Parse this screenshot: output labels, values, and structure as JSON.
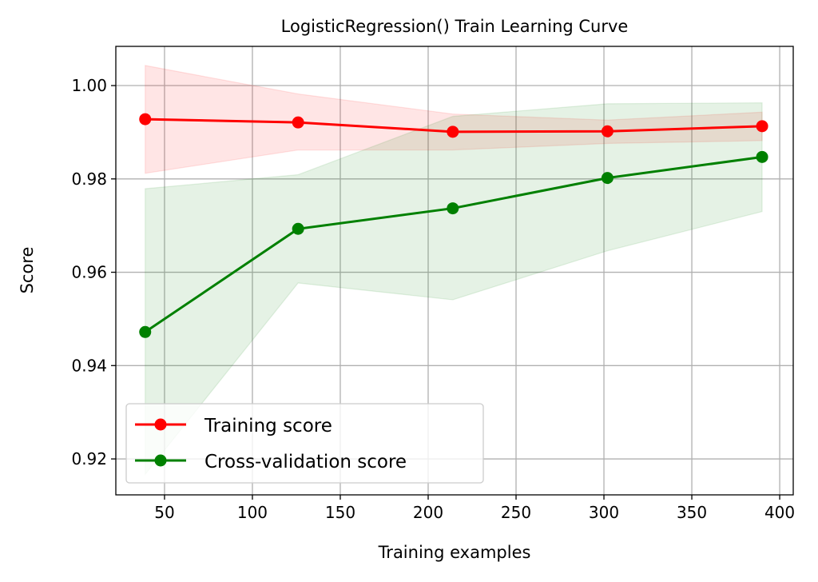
{
  "chart_data": {
    "type": "line",
    "title": "LogisticRegression() Train Learning Curve",
    "xlabel": "Training examples",
    "ylabel": "Score",
    "xlim": [
      22.3,
      407.7
    ],
    "ylim": [
      0.9123,
      1.0084
    ],
    "xticks": [
      50,
      100,
      150,
      200,
      250,
      300,
      350,
      400
    ],
    "yticks": [
      0.92,
      0.94,
      0.96,
      0.98,
      1.0
    ],
    "ytick_labels": [
      "0.92",
      "0.94",
      "0.96",
      "0.98",
      "1.00"
    ],
    "grid": true,
    "legend_position": "lower-left",
    "x": [
      39,
      126,
      214,
      302,
      390
    ],
    "series": [
      {
        "name": "Training score",
        "color": "#ff0000",
        "values": [
          0.9928,
          0.9921,
          0.9901,
          0.9902,
          0.9913
        ],
        "band_upper": [
          1.0043,
          0.9982,
          0.9939,
          0.9926,
          0.9943
        ],
        "band_lower": [
          0.9812,
          0.9862,
          0.9862,
          0.9876,
          0.9882
        ]
      },
      {
        "name": "Cross-validation score",
        "color": "#008000",
        "values": [
          0.9472,
          0.9693,
          0.9737,
          0.9802,
          0.9847
        ],
        "band_upper": [
          0.9779,
          0.9809,
          0.9934,
          0.9961,
          0.9963
        ],
        "band_lower": [
          0.9167,
          0.9577,
          0.9541,
          0.9646,
          0.973
        ]
      }
    ]
  }
}
